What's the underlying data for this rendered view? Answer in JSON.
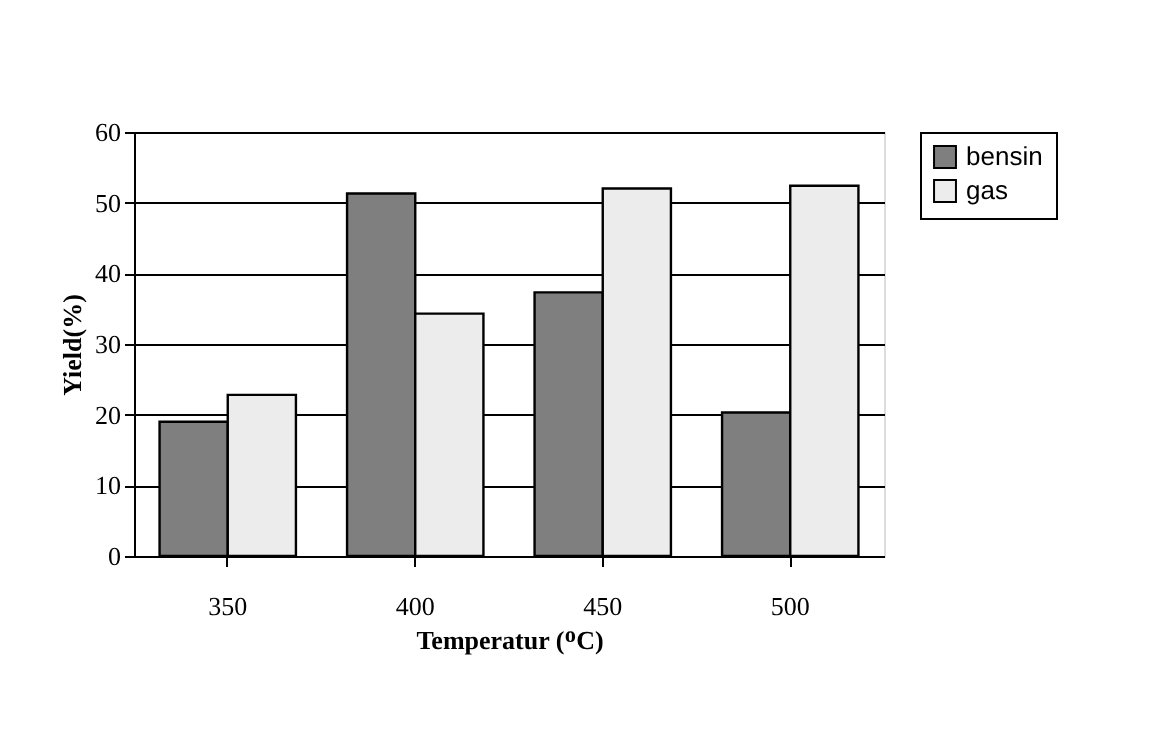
{
  "chart_data": {
    "type": "bar",
    "xlabel": "Temperatur (ᴼC)",
    "ylabel": "Yield(%)",
    "categories": [
      "350",
      "400",
      "450",
      "500"
    ],
    "series": [
      {
        "name": "bensin",
        "color": "#7f7f7f",
        "values": [
          19,
          51.3,
          37.3,
          20.3
        ]
      },
      {
        "name": "gas",
        "color": "#ececec",
        "values": [
          22.8,
          34.3,
          52,
          52.4
        ]
      }
    ],
    "ylim": [
      0,
      60
    ],
    "yticks": [
      0,
      10,
      20,
      30,
      40,
      50,
      60
    ],
    "grid": "y",
    "legend": "right"
  }
}
